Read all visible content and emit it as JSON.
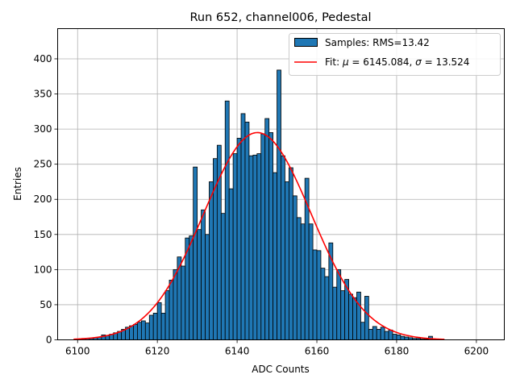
{
  "chart_data": {
    "type": "bar",
    "title": "Run 652, channel006, Pedestal",
    "xlabel": "ADC Counts",
    "ylabel": "Entries",
    "xlim": [
      6095,
      6207
    ],
    "ylim": [
      0,
      443
    ],
    "xticks": [
      6100,
      6120,
      6140,
      6160,
      6180,
      6200
    ],
    "yticks": [
      0,
      50,
      100,
      150,
      200,
      250,
      300,
      350,
      400
    ],
    "grid": true,
    "legend_position": "top-right",
    "bin_width": 1,
    "bins": {
      "x_start": [
        6100,
        6101,
        6102,
        6103,
        6104,
        6105,
        6106,
        6107,
        6108,
        6109,
        6110,
        6111,
        6112,
        6113,
        6114,
        6115,
        6116,
        6117,
        6118,
        6119,
        6120,
        6121,
        6122,
        6123,
        6124,
        6125,
        6126,
        6127,
        6128,
        6129,
        6130,
        6131,
        6132,
        6133,
        6134,
        6135,
        6136,
        6137,
        6138,
        6139,
        6140,
        6141,
        6142,
        6143,
        6144,
        6145,
        6146,
        6147,
        6148,
        6149,
        6150,
        6151,
        6152,
        6153,
        6154,
        6155,
        6156,
        6157,
        6158,
        6159,
        6160,
        6161,
        6162,
        6163,
        6164,
        6165,
        6166,
        6167,
        6168,
        6169,
        6170,
        6171,
        6172,
        6173,
        6174,
        6175,
        6176,
        6177,
        6178,
        6179,
        6180,
        6181,
        6182,
        6183,
        6184,
        6185,
        6186,
        6187,
        6188,
        6189
      ],
      "counts": [
        1,
        2,
        2,
        2,
        3,
        4,
        7,
        6,
        8,
        10,
        12,
        15,
        18,
        20,
        22,
        25,
        27,
        24,
        35,
        38,
        53,
        38,
        70,
        85,
        100,
        118,
        105,
        145,
        148,
        246,
        157,
        185,
        150,
        225,
        258,
        277,
        180,
        340,
        215,
        265,
        287,
        322,
        310,
        262,
        263,
        265,
        293,
        315,
        295,
        238,
        384,
        262,
        225,
        245,
        205,
        174,
        165,
        230,
        165,
        128,
        127,
        102,
        90,
        138,
        75,
        100,
        70,
        86,
        65,
        60,
        68,
        25,
        62,
        15,
        19,
        15,
        18,
        12,
        14,
        8,
        7,
        5,
        4,
        3,
        2,
        2,
        1,
        1,
        5,
        1
      ]
    },
    "series": [
      {
        "name": "Samples: RMS=13.42",
        "type": "histogram",
        "color": "#1f77b4"
      },
      {
        "name": "Fit: μ = 6145.084, σ = 13.524",
        "type": "line",
        "color": "#ff0000",
        "mu": 6145.084,
        "sigma": 13.524,
        "amplitude": 295,
        "x_range": [
          6099,
          6192
        ]
      }
    ]
  }
}
